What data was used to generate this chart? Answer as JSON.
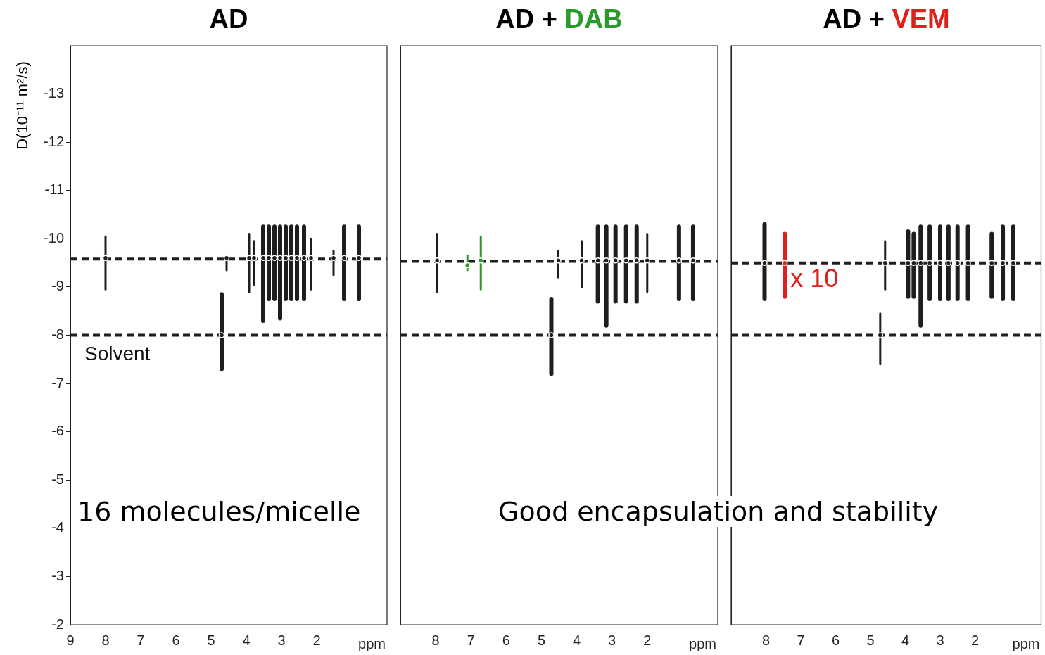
{
  "chart_data": [
    {
      "type": "scatter",
      "title": "AD",
      "xlabel": "ppm",
      "ylabel": "D(10⁻¹¹ m²/s)",
      "xlim": [
        9,
        0
      ],
      "xticks": [
        9,
        8,
        7,
        6,
        5,
        4,
        3,
        2
      ],
      "ylim": [
        -2,
        -14
      ],
      "yticks": [
        -2,
        -3,
        -4,
        -5,
        -6,
        -7,
        -8,
        -9,
        -10,
        -11,
        -12,
        -13
      ],
      "marker": "circle",
      "series": [
        {
          "color": "#1e1e1e",
          "x": [
            8.0,
            4.7,
            4.56,
            3.92,
            3.78,
            3.52,
            3.36,
            3.2,
            3.04,
            2.88,
            2.72,
            2.56,
            2.36,
            2.16,
            1.52,
            1.22,
            0.8
          ],
          "values": [
            -9.6,
            -8.0,
            -9.6,
            -9.6,
            -9.6,
            -9.6,
            -9.6,
            -9.6,
            -9.6,
            -9.6,
            -9.6,
            -9.6,
            -9.6,
            -9.6,
            -9.6,
            -9.6,
            -9.6
          ],
          "errors": [
            [
              -10.05,
              -8.95
            ],
            [
              -8.85,
              -7.3
            ],
            [
              -9.62,
              -9.35
            ],
            [
              -10.1,
              -8.9
            ],
            [
              -9.95,
              -9.05
            ],
            [
              -10.25,
              -8.3
            ],
            [
              -10.25,
              -8.75
            ],
            [
              -10.25,
              -8.75
            ],
            [
              -10.25,
              -8.35
            ],
            [
              -10.25,
              -8.75
            ],
            [
              -10.25,
              -8.75
            ],
            [
              -10.25,
              -8.75
            ],
            [
              -10.25,
              -8.75
            ],
            [
              -10.0,
              -8.95
            ],
            [
              -9.75,
              -9.25
            ],
            [
              -10.25,
              -8.75
            ],
            [
              -10.25,
              -8.75
            ]
          ]
        }
      ],
      "ref_lines": [
        {
          "axis": "y",
          "value": -9.58,
          "color": "#1e1e1e",
          "line_style": "dashed"
        },
        {
          "axis": "y",
          "value": -8.0,
          "color": "#1e1e1e",
          "line_style": "dashed",
          "label": "Solvent"
        }
      ],
      "annotations": [
        "16 molecules/micelle"
      ]
    },
    {
      "type": "scatter",
      "title": "AD + DAB",
      "xlabel": "ppm",
      "xlim": [
        9,
        0
      ],
      "xticks": [
        8,
        7,
        6,
        5,
        4,
        3,
        2
      ],
      "ylim": [
        -2,
        -14
      ],
      "yticks": [
        -2,
        -3,
        -4,
        -5,
        -6,
        -7,
        -8,
        -9,
        -10,
        -11,
        -12,
        -13
      ],
      "tick_labels": "x",
      "marker": "circle",
      "series": [
        {
          "color": "#1e1e1e",
          "x": [
            7.96,
            4.72,
            4.52,
            3.86,
            3.4,
            3.16,
            2.9,
            2.6,
            2.3,
            2.0,
            1.1,
            0.7
          ],
          "values": [
            -9.55,
            -8.0,
            -9.55,
            -9.55,
            -9.55,
            -9.55,
            -9.55,
            -9.55,
            -9.55,
            -9.55,
            -9.55,
            -9.55
          ],
          "errors": [
            [
              -10.1,
              -8.9
            ],
            [
              -8.75,
              -7.2
            ],
            [
              -9.75,
              -9.2
            ],
            [
              -9.95,
              -9.0
            ],
            [
              -10.25,
              -8.7
            ],
            [
              -10.25,
              -8.2
            ],
            [
              -10.25,
              -8.7
            ],
            [
              -10.25,
              -8.7
            ],
            [
              -10.25,
              -8.7
            ],
            [
              -10.1,
              -8.9
            ],
            [
              -10.25,
              -8.75
            ],
            [
              -10.25,
              -8.75
            ]
          ]
        },
        {
          "color": "#2a9a2a",
          "x": [
            7.1,
            6.72
          ],
          "values": [
            -9.45,
            -9.55
          ],
          "errors": [
            [
              -9.65,
              -9.35
            ],
            [
              -10.05,
              -8.95
            ]
          ]
        }
      ],
      "ref_lines": [
        {
          "axis": "y",
          "value": -9.53,
          "color": "#1e1e1e",
          "line_style": "dashed"
        },
        {
          "axis": "y",
          "value": -8.0,
          "color": "#1e1e1e",
          "line_style": "dashed"
        }
      ],
      "annotations": [
        "Good encapsulation and stability"
      ]
    },
    {
      "type": "scatter",
      "title": "AD + VEM",
      "xlabel": "ppm",
      "xlim": [
        9,
        0.1
      ],
      "xticks": [
        8,
        7,
        6,
        5,
        4,
        3,
        2
      ],
      "ylim": [
        -2,
        -14
      ],
      "yticks": [
        -2,
        -3,
        -4,
        -5,
        -6,
        -7,
        -8,
        -9,
        -10,
        -11,
        -12,
        -13
      ],
      "tick_labels": "x",
      "marker": "circle",
      "series": [
        {
          "color": "#1e1e1e",
          "x": [
            8.04,
            4.72,
            4.58,
            3.92,
            3.76,
            3.56,
            3.3,
            3.0,
            2.76,
            2.5,
            2.2,
            1.52,
            1.2,
            0.9
          ],
          "values": [
            -9.5,
            -8.0,
            -9.5,
            -9.5,
            -9.5,
            -9.5,
            -9.5,
            -9.5,
            -9.5,
            -9.5,
            -9.5,
            -9.5,
            -9.5,
            -9.5
          ],
          "errors": [
            [
              -10.3,
              -8.75
            ],
            [
              -8.45,
              -7.4
            ],
            [
              -9.95,
              -8.95
            ],
            [
              -10.15,
              -8.8
            ],
            [
              -10.1,
              -8.8
            ],
            [
              -10.25,
              -8.2
            ],
            [
              -10.25,
              -8.75
            ],
            [
              -10.25,
              -8.75
            ],
            [
              -10.25,
              -8.75
            ],
            [
              -10.25,
              -8.75
            ],
            [
              -10.25,
              -8.75
            ],
            [
              -10.1,
              -8.8
            ],
            [
              -10.25,
              -8.75
            ],
            [
              -10.25,
              -8.75
            ]
          ]
        },
        {
          "color": "#e0201a",
          "x": [
            7.46
          ],
          "values": [
            -9.5
          ],
          "errors": [
            [
              -10.1,
              -8.8
            ]
          ]
        }
      ],
      "ref_lines": [
        {
          "axis": "y",
          "value": -9.5,
          "color": "#1e1e1e",
          "line_style": "dashed"
        },
        {
          "axis": "y",
          "value": -8.0,
          "color": "#1e1e1e",
          "line_style": "dashed"
        }
      ],
      "annotations": [
        {
          "text": "x 10",
          "x": 7.3,
          "y": -9.15
        }
      ]
    }
  ]
}
